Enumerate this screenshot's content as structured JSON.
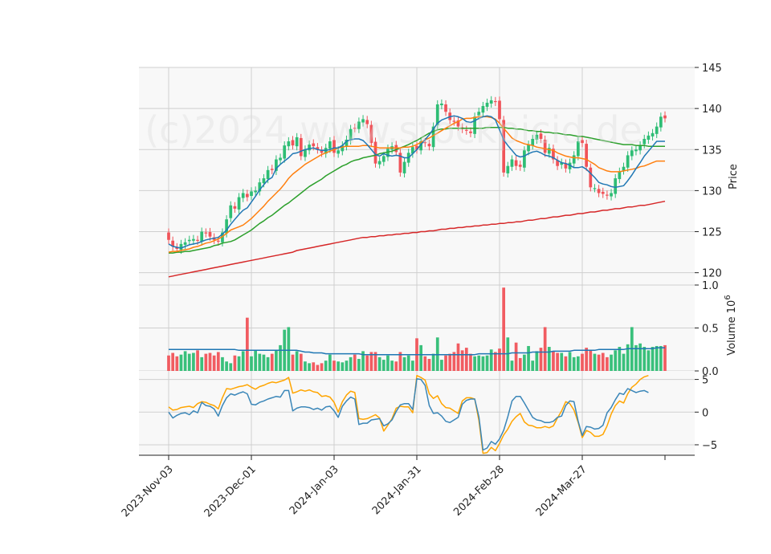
{
  "watermark": "(c)2024 www.stockpicid.de",
  "colors": {
    "up": "#2ebd74",
    "down": "#f05359",
    "ma_fast": "#1f77b4",
    "ma_mid": "#ff7f0e",
    "ma_slow": "#2ca02c",
    "ma_long": "#d62728",
    "vol_avg": "#1f77b4",
    "osc_a": "#3a86b8",
    "osc_b": "#ffa500",
    "panel_bg": "#f8f8f8",
    "grid": "#cfcfcf"
  },
  "chart_data": [
    {
      "type": "candlestick",
      "ylabel": "Price",
      "ylim": [
        118.5,
        145
      ],
      "yticks": [
        120,
        125,
        130,
        135,
        140,
        145
      ],
      "x_tick_labels": [
        "2023-Nov-03",
        "2023-Dec-01",
        "2024-Jan-03",
        "2024-Jan-31",
        "2024-Feb-28",
        "2024-Mar-27"
      ],
      "x_tick_index": [
        0,
        20,
        40,
        60,
        80,
        100
      ],
      "grid": true,
      "close": [
        124.0,
        123.2,
        122.9,
        123.5,
        123.7,
        124.0,
        124.1,
        123.9,
        125.0,
        124.8,
        124.4,
        124.0,
        123.8,
        124.9,
        126.5,
        128.2,
        127.8,
        129.2,
        129.7,
        129.2,
        129.9,
        130.0,
        131.0,
        131.5,
        132.5,
        132.5,
        133.8,
        134.0,
        135.5,
        136.0,
        135.5,
        136.5,
        134.2,
        135.0,
        135.6,
        135.4,
        135.0,
        134.6,
        135.2,
        136.0,
        134.6,
        134.9,
        135.5,
        136.2,
        137.5,
        137.6,
        138.4,
        138.7,
        138.1,
        135.8,
        133.3,
        133.6,
        134.2,
        135.1,
        135.4,
        134.7,
        132.2,
        133.5,
        134.6,
        135.3,
        135.0,
        136.0,
        135.8,
        135.4,
        137.8,
        140.5,
        140.6,
        139.6,
        138.6,
        138.4,
        137.8,
        137.5,
        137.3,
        137.0,
        139.0,
        139.6,
        140.3,
        140.7,
        141.0,
        140.8,
        138.7,
        132.2,
        133.0,
        133.8,
        133.0,
        132.9,
        134.9,
        135.6,
        136.3,
        136.8,
        136.3,
        134.6,
        135.2,
        133.8,
        133.0,
        133.4,
        132.7,
        133.4,
        134.3,
        136.0,
        135.8,
        132.9,
        130.4,
        130.3,
        129.7,
        129.6,
        129.4,
        129.7,
        131.5,
        132.3,
        132.9,
        134.3,
        134.9,
        135.0,
        135.5,
        136.3,
        136.7,
        137.0,
        137.8,
        139.0,
        138.8
      ],
      "volume": [
        0.18,
        0.21,
        0.17,
        0.19,
        0.23,
        0.2,
        0.21,
        0.24,
        0.16,
        0.2,
        0.21,
        0.18,
        0.22,
        0.16,
        0.11,
        0.09,
        0.18,
        0.17,
        0.23,
        0.62,
        0.17,
        0.24,
        0.2,
        0.19,
        0.16,
        0.2,
        0.24,
        0.3,
        0.48,
        0.51,
        0.19,
        0.23,
        0.2,
        0.11,
        0.09,
        0.1,
        0.07,
        0.09,
        0.12,
        0.19,
        0.12,
        0.11,
        0.1,
        0.12,
        0.16,
        0.19,
        0.14,
        0.23,
        0.18,
        0.22,
        0.22,
        0.16,
        0.13,
        0.18,
        0.12,
        0.11,
        0.22,
        0.16,
        0.18,
        0.12,
        0.38,
        0.3,
        0.17,
        0.14,
        0.2,
        0.39,
        0.13,
        0.18,
        0.2,
        0.22,
        0.32,
        0.24,
        0.27,
        0.2,
        0.17,
        0.18,
        0.17,
        0.18,
        0.25,
        0.22,
        0.26,
        0.97,
        0.39,
        0.12,
        0.33,
        0.15,
        0.19,
        0.29,
        0.12,
        0.23,
        0.27,
        0.51,
        0.28,
        0.23,
        0.21,
        0.21,
        0.17,
        0.22,
        0.16,
        0.17,
        0.2,
        0.27,
        0.24,
        0.2,
        0.19,
        0.21,
        0.16,
        0.19,
        0.24,
        0.28,
        0.2,
        0.31,
        0.51,
        0.3,
        0.32,
        0.28,
        0.24,
        0.28,
        0.29,
        0.29,
        0.3
      ],
      "ma_fast_name": "",
      "ma_fast": [
        123.5,
        123.2,
        123.1,
        123.0,
        123.2,
        123.4,
        123.5,
        123.6,
        123.8,
        124.0,
        124.1,
        124.2,
        124.3,
        124.7,
        125.2,
        125.9,
        126.5,
        127.1,
        127.6,
        127.9,
        128.6,
        129.3,
        130.1,
        130.7,
        131.3,
        131.6,
        132.7,
        133.2,
        133.6,
        134.0,
        134.5,
        134.6,
        134.8,
        135.0,
        135.1,
        135.2,
        135.0,
        134.9,
        134.9,
        135.0,
        135.2,
        135.2,
        135.5,
        136.0,
        136.2,
        136.3,
        136.3,
        136.1,
        135.6,
        135.0,
        134.4,
        134.2,
        134.5,
        134.3,
        134.2,
        134.3,
        134.2,
        134.0,
        134.0,
        134.5,
        135.0,
        135.6,
        136.2,
        136.8,
        137.5,
        138.2,
        138.6,
        138.8,
        139.0,
        139.1,
        139.0,
        138.8,
        138.4,
        138.3,
        138.5,
        138.8,
        139.0,
        139.1,
        139.0,
        138.6,
        137.4,
        136.2,
        135.5,
        134.9,
        134.3,
        134.1,
        134.2,
        134.5,
        134.7,
        134.8,
        134.6,
        134.3,
        134.2,
        134.0,
        133.7,
        133.4,
        133.3,
        133.1,
        132.8,
        132.8,
        132.9,
        132.6,
        132.1,
        131.6,
        131.0,
        130.8,
        130.7,
        130.5,
        130.4,
        130.5,
        130.6,
        131.2,
        131.9,
        132.7,
        133.4,
        134.2,
        134.8,
        135.4,
        136.0,
        136.0,
        136.0
      ],
      "ma_mid_name": "",
      "ma_mid": [
        122.5,
        122.6,
        122.6,
        122.7,
        122.8,
        122.9,
        123.1,
        123.2,
        123.4,
        123.6,
        123.7,
        123.9,
        124.1,
        124.4,
        124.8,
        125.2,
        125.4,
        125.6,
        125.8,
        126.2,
        126.6,
        127.1,
        127.6,
        128.1,
        128.7,
        129.2,
        129.7,
        130.2,
        130.8,
        131.5,
        132.0,
        132.4,
        132.8,
        133.2,
        133.5,
        133.8,
        134.1,
        134.4,
        134.6,
        134.8,
        135.0,
        135.2,
        135.3,
        135.4,
        135.4,
        135.4,
        135.4,
        135.5,
        135.5,
        135.4,
        135.3,
        135.2,
        135.2,
        135.2,
        135.2,
        135.2,
        135.2,
        135.3,
        135.3,
        135.4,
        135.6,
        135.9,
        136.2,
        136.4,
        136.7,
        137.0,
        137.3,
        137.6,
        137.9,
        138.2,
        138.4,
        138.7,
        138.8,
        138.8,
        138.9,
        139.0,
        139.0,
        139.0,
        138.9,
        138.7,
        138.2,
        137.6,
        137.0,
        136.4,
        136.1,
        135.9,
        135.7,
        135.6,
        135.5,
        135.3,
        135.2,
        135.1,
        135.0,
        134.9,
        134.6,
        134.4,
        134.2,
        134.1,
        134.0,
        134.0,
        133.9,
        133.8,
        133.5,
        133.2,
        132.8,
        132.6,
        132.4,
        132.3,
        132.3,
        132.3,
        132.4,
        132.5,
        132.6,
        132.7,
        132.9,
        133.0,
        133.2,
        133.4,
        133.6,
        133.6,
        133.6
      ],
      "ma_slow_name": "",
      "ma_slow": [
        122.4,
        122.4,
        122.5,
        122.5,
        122.6,
        122.6,
        122.7,
        122.8,
        122.9,
        123.0,
        123.1,
        123.3,
        123.4,
        123.6,
        123.7,
        123.8,
        124.0,
        124.3,
        124.6,
        124.9,
        125.2,
        125.6,
        126.0,
        126.3,
        126.7,
        127.0,
        127.4,
        127.8,
        128.2,
        128.5,
        128.9,
        129.3,
        129.7,
        130.1,
        130.5,
        130.8,
        131.1,
        131.4,
        131.8,
        132.1,
        132.4,
        132.7,
        133.0,
        133.2,
        133.5,
        133.7,
        133.8,
        134.0,
        134.1,
        134.2,
        134.3,
        134.5,
        134.6,
        134.7,
        134.8,
        135.0,
        135.2,
        135.4,
        135.6,
        135.9,
        136.1,
        136.4,
        136.7,
        137.0,
        137.2,
        137.4,
        137.5,
        137.5,
        137.6,
        137.6,
        137.6,
        137.6,
        137.6,
        137.6,
        137.6,
        137.6,
        137.6,
        137.7,
        137.7,
        137.7,
        137.7,
        137.7,
        137.6,
        137.6,
        137.5,
        137.5,
        137.4,
        137.3,
        137.3,
        137.2,
        137.2,
        137.1,
        137.1,
        137.0,
        137.0,
        136.9,
        136.8,
        136.8,
        136.7,
        136.6,
        136.6,
        136.5,
        136.4,
        136.3,
        136.2,
        136.1,
        136.0,
        135.9,
        135.8,
        135.7,
        135.6,
        135.6,
        135.6,
        135.5,
        135.5,
        135.5,
        135.4,
        135.4,
        135.4,
        135.4,
        135.4
      ],
      "ma_long_name": "",
      "ma_long": [
        119.5,
        119.6,
        119.7,
        119.8,
        119.9,
        120.0,
        120.1,
        120.2,
        120.3,
        120.4,
        120.5,
        120.6,
        120.7,
        120.8,
        120.9,
        121.0,
        121.1,
        121.2,
        121.3,
        121.4,
        121.5,
        121.6,
        121.7,
        121.8,
        121.9,
        122.0,
        122.1,
        122.2,
        122.3,
        122.4,
        122.5,
        122.7,
        122.8,
        122.9,
        123.0,
        123.1,
        123.2,
        123.3,
        123.4,
        123.5,
        123.6,
        123.7,
        123.8,
        123.9,
        124.0,
        124.1,
        124.2,
        124.3,
        124.3,
        124.4,
        124.4,
        124.5,
        124.5,
        124.6,
        124.6,
        124.7,
        124.7,
        124.8,
        124.8,
        124.9,
        124.9,
        125.0,
        125.0,
        125.1,
        125.1,
        125.2,
        125.3,
        125.3,
        125.4,
        125.4,
        125.5,
        125.5,
        125.6,
        125.6,
        125.7,
        125.7,
        125.8,
        125.8,
        125.9,
        125.9,
        126.0,
        126.0,
        126.1,
        126.1,
        126.2,
        126.2,
        126.3,
        126.4,
        126.4,
        126.5,
        126.6,
        126.6,
        126.7,
        126.8,
        126.8,
        126.9,
        127.0,
        127.0,
        127.1,
        127.2,
        127.2,
        127.3,
        127.4,
        127.4,
        127.5,
        127.6,
        127.6,
        127.7,
        127.8,
        127.8,
        127.9,
        128.0,
        128.0,
        128.1,
        128.2,
        128.2,
        128.3,
        128.4,
        128.5,
        128.6,
        128.7
      ]
    },
    {
      "type": "bar",
      "ylabel": "Volume  10^6",
      "ylim": [
        0,
        1.0
      ],
      "yticks": [
        0.0,
        0.5,
        1.0
      ],
      "grid": true,
      "avg_line": [
        0.25,
        0.25,
        0.25,
        0.25,
        0.25,
        0.25,
        0.25,
        0.25,
        0.25,
        0.25,
        0.25,
        0.25,
        0.25,
        0.25,
        0.25,
        0.25,
        0.25,
        0.24,
        0.24,
        0.24,
        0.24,
        0.24,
        0.24,
        0.24,
        0.24,
        0.24,
        0.24,
        0.24,
        0.24,
        0.24,
        0.24,
        0.24,
        0.23,
        0.22,
        0.22,
        0.21,
        0.21,
        0.21,
        0.2,
        0.2,
        0.2,
        0.2,
        0.2,
        0.2,
        0.2,
        0.2,
        0.2,
        0.19,
        0.19,
        0.19,
        0.19,
        0.19,
        0.19,
        0.19,
        0.19,
        0.19,
        0.19,
        0.19,
        0.19,
        0.19,
        0.19,
        0.19,
        0.19,
        0.19,
        0.19,
        0.19,
        0.19,
        0.19,
        0.19,
        0.19,
        0.19,
        0.19,
        0.19,
        0.19,
        0.19,
        0.2,
        0.2,
        0.2,
        0.2,
        0.2,
        0.2,
        0.2,
        0.2,
        0.21,
        0.21,
        0.21,
        0.21,
        0.21,
        0.22,
        0.22,
        0.22,
        0.22,
        0.22,
        0.23,
        0.23,
        0.23,
        0.23,
        0.23,
        0.24,
        0.24,
        0.24,
        0.24,
        0.24,
        0.24,
        0.25,
        0.25,
        0.25,
        0.25,
        0.25,
        0.25,
        0.25,
        0.26,
        0.26,
        0.26,
        0.26,
        0.26,
        0.26,
        0.26,
        0.27,
        0.27,
        0.27
      ]
    },
    {
      "type": "line",
      "ylim": [
        -6.6,
        6.3
      ],
      "yticks": [
        -5,
        0,
        5
      ],
      "grid": true,
      "series_a": [
        0.0,
        -0.9,
        -0.5,
        -0.2,
        -0.1,
        -0.4,
        0.2,
        -0.1,
        1.5,
        1.0,
        0.9,
        0.5,
        -0.6,
        1.0,
        2.2,
        2.8,
        2.6,
        2.9,
        3.1,
        2.8,
        1.2,
        1.1,
        1.5,
        1.7,
        2.0,
        2.2,
        2.4,
        2.3,
        3.3,
        3.3,
        0.2,
        0.6,
        0.8,
        0.8,
        0.7,
        0.4,
        0.6,
        0.3,
        0.8,
        0.9,
        0.2,
        -0.8,
        0.9,
        1.7,
        2.3,
        2.0,
        -1.9,
        -1.7,
        -1.7,
        -1.2,
        -1.1,
        -1.0,
        -2.1,
        -1.8,
        -1.2,
        0.1,
        1.1,
        1.3,
        1.3,
        0.4,
        5.1,
        5.0,
        4.1,
        1.0,
        -0.2,
        -0.1,
        -0.6,
        -1.4,
        -1.6,
        -1.2,
        -0.8,
        1.2,
        1.8,
        2.0,
        2.0,
        -0.7,
        -5.8,
        -5.5,
        -4.5,
        -4.9,
        -4.1,
        -2.8,
        -0.7,
        1.7,
        2.4,
        2.4,
        1.4,
        0.3,
        -0.8,
        -1.2,
        -1.3,
        -1.6,
        -1.6,
        -1.4,
        -0.8,
        -0.6,
        1.0,
        1.7,
        1.6,
        -1.4,
        -3.6,
        -2.2,
        -2.3,
        -2.6,
        -2.5,
        -2.0,
        -0.1,
        0.7,
        1.9,
        2.9,
        2.7,
        3.6,
        3.3,
        3.0,
        3.2,
        3.3,
        3.0
      ],
      "series_b": [
        0.8,
        0.3,
        0.4,
        0.7,
        0.8,
        0.9,
        0.7,
        1.3,
        1.6,
        1.5,
        1.2,
        1.0,
        0.5,
        2.2,
        3.6,
        3.5,
        3.7,
        3.9,
        4.0,
        4.2,
        3.8,
        3.5,
        3.9,
        4.1,
        4.4,
        4.6,
        4.5,
        4.7,
        4.9,
        5.3,
        2.9,
        3.1,
        3.4,
        3.2,
        3.4,
        3.1,
        3.0,
        2.4,
        2.5,
        2.3,
        1.5,
        0.0,
        1.6,
        2.6,
        3.2,
        3.0,
        -1.0,
        -1.1,
        -1.0,
        -0.7,
        -0.4,
        -0.9,
        -2.9,
        -2.0,
        -1.0,
        0.6,
        0.9,
        0.8,
        0.8,
        -0.1,
        5.6,
        5.3,
        4.9,
        2.8,
        2.1,
        2.5,
        1.3,
        0.7,
        0.6,
        0.2,
        -0.2,
        1.7,
        2.2,
        2.2,
        2.0,
        -1.3,
        -6.3,
        -6.2,
        -5.4,
        -5.9,
        -4.8,
        -3.5,
        -2.6,
        -1.4,
        -0.7,
        -0.2,
        -1.5,
        -2.0,
        -2.1,
        -2.4,
        -2.4,
        -2.2,
        -2.4,
        -2.1,
        -0.9,
        0.2,
        1.6,
        1.3,
        0.3,
        -1.6,
        -3.9,
        -2.8,
        -3.1,
        -3.7,
        -3.7,
        -3.4,
        -2.1,
        -0.3,
        1.0,
        1.7,
        1.4,
        2.8,
        3.8,
        4.3,
        5.0,
        5.4,
        5.6
      ]
    }
  ]
}
